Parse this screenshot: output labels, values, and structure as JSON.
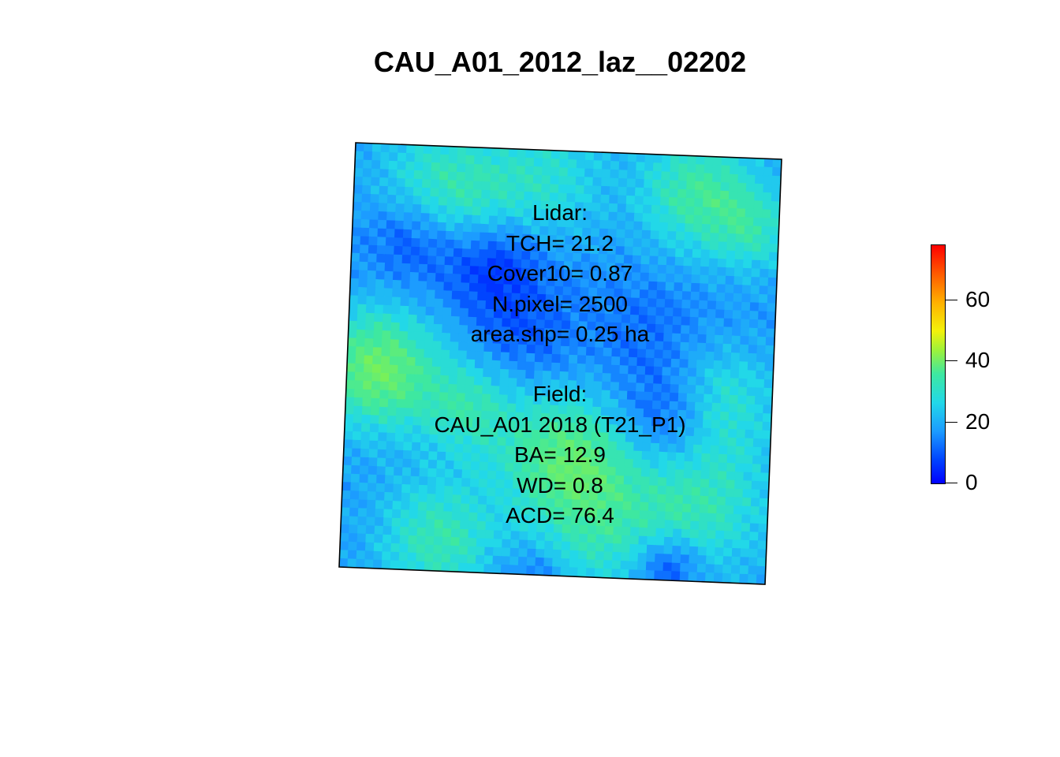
{
  "title": "CAU_A01_2012_laz__02202",
  "lidar": {
    "lines": [
      "Lidar:",
      "TCH= 21.2",
      "Cover10= 0.87",
      "N.pixel= 2500",
      "area.shp= 0.25 ha"
    ]
  },
  "field": {
    "lines": [
      "Field:",
      "CAU_A01 2018 (T21_P1)",
      "BA= 12.9",
      "WD= 0.8",
      "ACD= 76.4"
    ]
  },
  "legend": {
    "ticks": [
      "0",
      "20",
      "40",
      "60"
    ],
    "tick_values": [
      0,
      20,
      40,
      60
    ],
    "min": 0,
    "max": 78,
    "palette": [
      "#0000ff",
      "#0044ff",
      "#1c9cff",
      "#22d8e8",
      "#3ee8a0",
      "#9ef23a",
      "#f3f20a",
      "#ffb000",
      "#ff5a00",
      "#ff0000"
    ]
  },
  "raster": {
    "grid_size": 50,
    "canopy_height_range": [
      0,
      45
    ]
  }
}
